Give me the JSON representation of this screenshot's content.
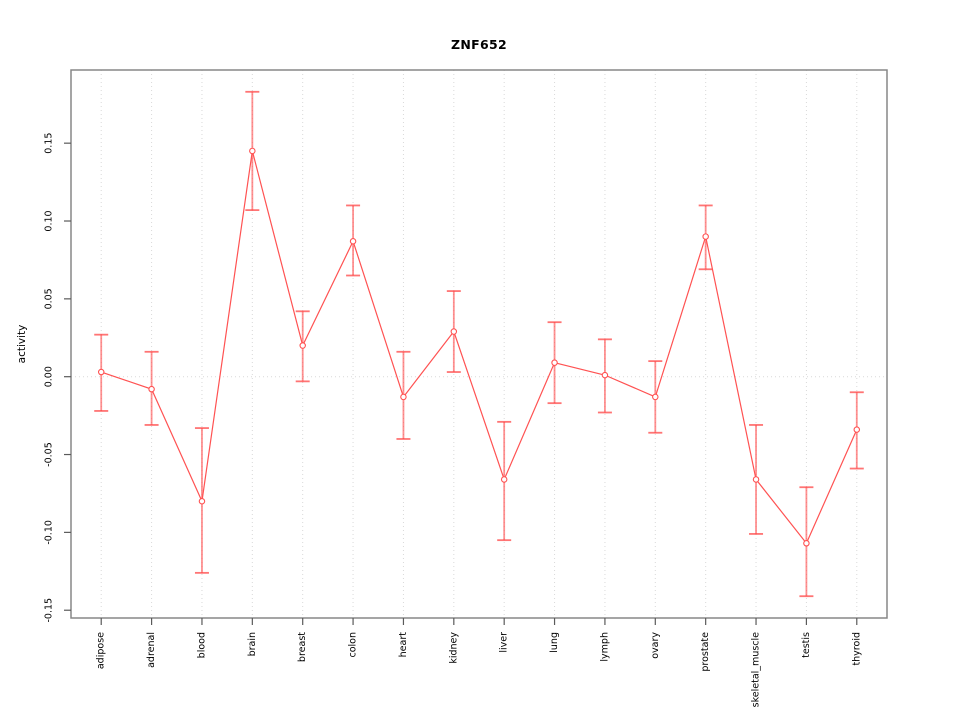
{
  "chart_data": {
    "type": "line",
    "title": "ZNF652",
    "xlabel": "",
    "ylabel": "activity",
    "legend_position": "none",
    "grid": "vertical dotted gridline per category, dotted horizontal line at 0",
    "categories": [
      "adipose",
      "adrenal",
      "blood",
      "brain",
      "breast",
      "colon",
      "heart",
      "kidney",
      "liver",
      "lung",
      "lymph",
      "ovary",
      "prostate",
      "skeletal_muscle",
      "testis",
      "thyroid"
    ],
    "values": [
      0.003,
      -0.008,
      -0.08,
      0.145,
      0.02,
      0.087,
      -0.013,
      0.029,
      -0.066,
      0.009,
      0.001,
      -0.013,
      0.09,
      -0.066,
      -0.107,
      -0.034
    ],
    "error_low": [
      -0.022,
      -0.031,
      -0.126,
      0.107,
      -0.003,
      0.065,
      -0.04,
      0.003,
      -0.105,
      -0.017,
      -0.023,
      -0.036,
      0.069,
      -0.101,
      -0.141,
      -0.059
    ],
    "error_high": [
      0.027,
      0.016,
      -0.033,
      0.183,
      0.042,
      0.11,
      0.016,
      0.055,
      -0.029,
      0.035,
      0.024,
      0.01,
      0.11,
      -0.031,
      -0.071,
      -0.01
    ],
    "ylim": [
      -0.155,
      0.197
    ],
    "yticks": [
      -0.15,
      -0.1,
      -0.05,
      0.0,
      0.05,
      0.1,
      0.15
    ],
    "colors": {
      "line": "#ff5252",
      "point_stroke": "#ff5252",
      "point_fill": "#ffffff",
      "error_bar": "rgba(255,70,70,0.60)",
      "error_cap": "rgba(255,70,70,0.75)",
      "frame": "#878787",
      "tick": "#5a5a5a",
      "gridline": "#d9d9d9",
      "label": "#000000"
    }
  }
}
